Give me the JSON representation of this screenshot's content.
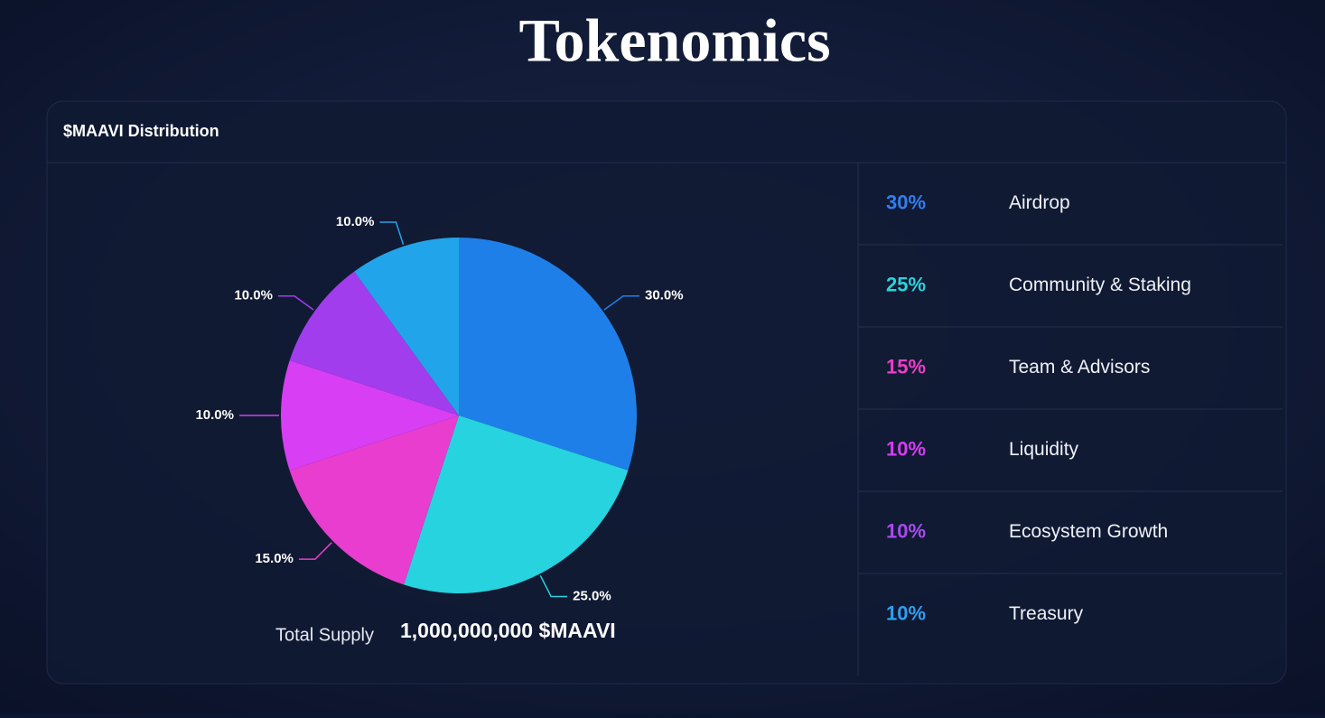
{
  "page": {
    "title": "Tokenomics"
  },
  "chart_data": {
    "type": "pie",
    "title": "$MAAVI Distribution",
    "categories": [
      "Airdrop",
      "Community & Staking",
      "Team & Advisors",
      "Liquidity",
      "Ecosystem Growth",
      "Treasury"
    ],
    "values": [
      30,
      25,
      15,
      10,
      10,
      10
    ],
    "value_labels": [
      "30.0%",
      "25.0%",
      "15.0%",
      "10.0%",
      "10.0%",
      "10.0%"
    ],
    "allocation_labels": [
      "30%",
      "25%",
      "15%",
      "10%",
      "10%",
      "10%"
    ],
    "colors": [
      "#1f7fe9",
      "#27d3df",
      "#e83dcf",
      "#d83ef4",
      "#a23ded",
      "#22a4ea"
    ],
    "label_colors": [
      "#2f7ff0",
      "#2ad4dc",
      "#f03cc8",
      "#d63cf2",
      "#a94af0",
      "#2fa0f0"
    ]
  },
  "total_supply": {
    "label": "Total Supply",
    "value": "1,000,000,000 $MAAVI"
  }
}
